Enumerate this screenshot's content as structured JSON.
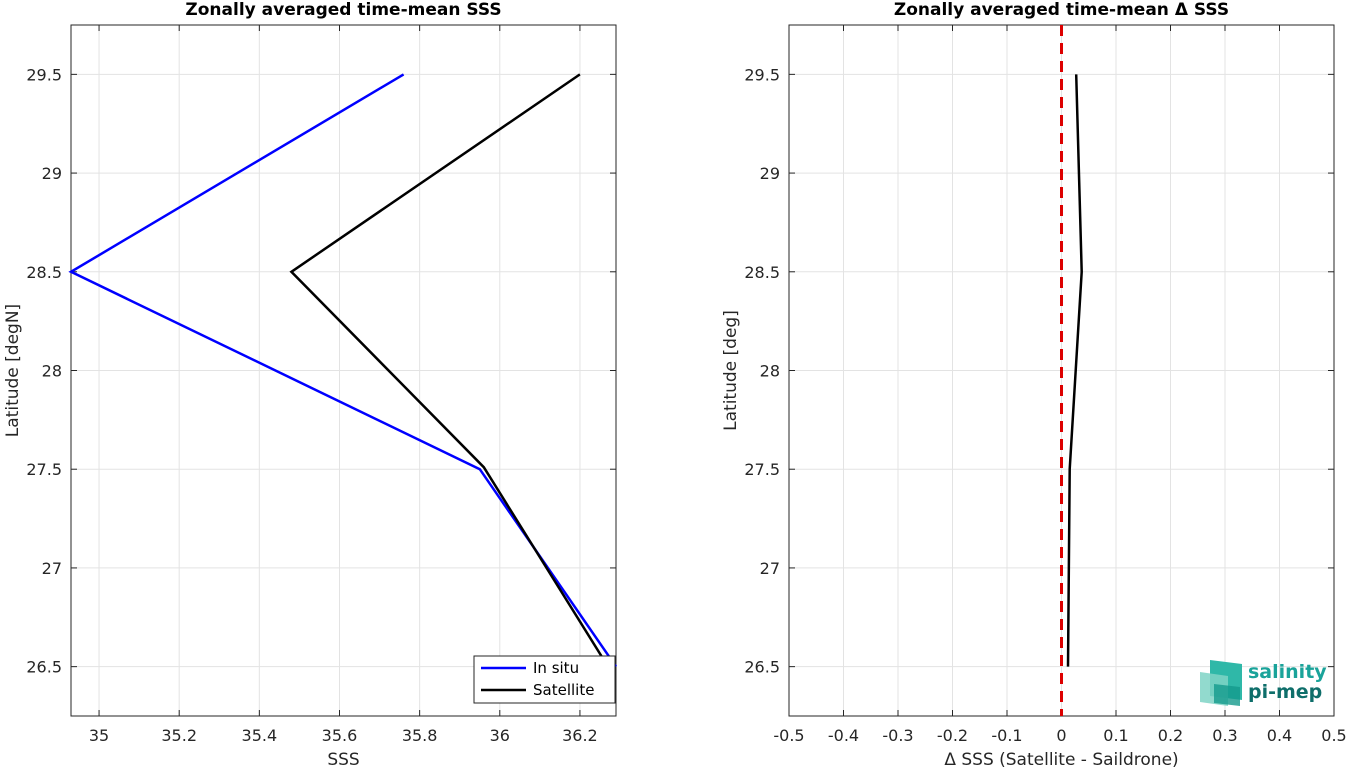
{
  "chart_data": [
    {
      "type": "line",
      "title": "Zonally averaged time-mean SSS",
      "xlabel": "SSS",
      "ylabel": "Latitude [degN]",
      "xlim": [
        34.93,
        36.29
      ],
      "ylim": [
        26.25,
        29.75
      ],
      "xticks": [
        "35",
        "35.2",
        "35.4",
        "35.6",
        "35.8",
        "36",
        "36.2"
      ],
      "yticks": [
        "26.5",
        "27",
        "27.5",
        "28",
        "28.5",
        "29",
        "29.5"
      ],
      "grid": true,
      "legend_position": "bottom-right",
      "series": [
        {
          "name": "In situ",
          "color": "#0000ff",
          "points": [
            [
              35.76,
              29.5
            ],
            [
              34.93,
              28.5
            ],
            [
              35.95,
              27.5
            ],
            [
              36.29,
              26.5
            ]
          ]
        },
        {
          "name": "Satellite",
          "color": "#000000",
          "points": [
            [
              36.2,
              29.5
            ],
            [
              35.48,
              28.5
            ],
            [
              35.96,
              27.51
            ],
            [
              36.27,
              26.5
            ]
          ]
        }
      ]
    },
    {
      "type": "line",
      "title": "Zonally averaged time-mean Δ SSS",
      "xlabel": "Δ SSS (Satellite - Saildrone)",
      "ylabel": "Latitude [deg]",
      "xlim": [
        -0.5,
        0.5
      ],
      "ylim": [
        26.25,
        29.75
      ],
      "xticks": [
        "-0.5",
        "-0.4",
        "-0.3",
        "-0.2",
        "-0.1",
        "0",
        "0.1",
        "0.2",
        "0.3",
        "0.4",
        "0.5"
      ],
      "yticks": [
        "26.5",
        "27",
        "27.5",
        "28",
        "28.5",
        "29",
        "29.5"
      ],
      "grid": true,
      "reference_line": {
        "x": 0,
        "color": "#dd0000",
        "style": "dashed"
      },
      "series": [
        {
          "color": "#000000",
          "points": [
            [
              0.027,
              29.5
            ],
            [
              0.037,
              28.5
            ],
            [
              0.015,
              27.5
            ],
            [
              0.012,
              26.5
            ]
          ]
        }
      ]
    }
  ],
  "logo": {
    "line1": "salinity",
    "line2": "pi-mep",
    "color1": "#1aa39a",
    "color2": "#0e6e6a"
  }
}
